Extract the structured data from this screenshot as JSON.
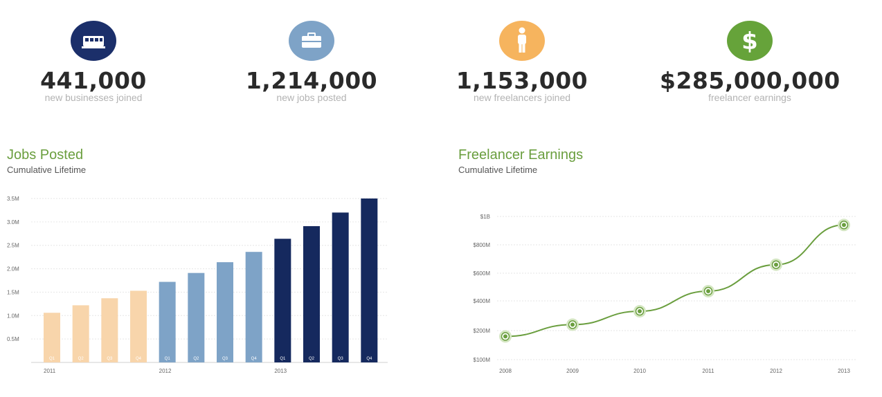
{
  "stats": [
    {
      "value": "441,000",
      "label": "new businesses joined",
      "icon": "building-icon",
      "color": "#1b2f6a"
    },
    {
      "value": "1,214,000",
      "label": "new jobs posted",
      "icon": "briefcase-icon",
      "color": "#7ea3c7"
    },
    {
      "value": "1,153,000",
      "label": "new freelancers joined",
      "icon": "person-icon",
      "color": "#f6b45e"
    },
    {
      "value": "$285,000,000",
      "label": "freelancer earnings",
      "icon": "dollar-icon",
      "color": "#66a33a"
    }
  ],
  "jobs": {
    "title": "Jobs Posted",
    "subtitle": "Cumulative Lifetime"
  },
  "earnings": {
    "title": "Freelancer Earnings",
    "subtitle": "Cumulative Lifetime"
  },
  "chart_data": [
    {
      "type": "bar",
      "title": "Jobs Posted",
      "subtitle": "Cumulative Lifetime",
      "categories": [
        "Q1",
        "Q2",
        "Q3",
        "Q4",
        "Q1",
        "Q2",
        "Q3",
        "Q4",
        "Q1",
        "Q2",
        "Q3",
        "Q4"
      ],
      "x_groups": [
        {
          "label": "2011",
          "start": 0,
          "end": 3,
          "color": "#f8d5ab"
        },
        {
          "label": "2012",
          "start": 4,
          "end": 7,
          "color": "#7ea3c7"
        },
        {
          "label": "2013",
          "start": 8,
          "end": 11,
          "color": "#15295e"
        }
      ],
      "values": [
        1.06,
        1.22,
        1.37,
        1.53,
        1.72,
        1.91,
        2.14,
        2.36,
        2.64,
        2.91,
        3.2,
        3.5
      ],
      "yticks": [
        "0.5M",
        "1.0M",
        "1.5M",
        "2.0M",
        "2.5M",
        "3.0M",
        "3.5M"
      ],
      "ylim": [
        0,
        3.5
      ],
      "grid": true
    },
    {
      "type": "line",
      "title": "Freelancer Earnings",
      "subtitle": "Cumulative Lifetime",
      "x": [
        "2008",
        "2009",
        "2010",
        "2011",
        "2012",
        "2013"
      ],
      "values": [
        180,
        240,
        330,
        470,
        660,
        940
      ],
      "yticks": [
        "$100M",
        "$200M",
        "$400M",
        "$600M",
        "$800M",
        "$1B"
      ],
      "color": "#6a9e3e",
      "grid": true
    }
  ]
}
